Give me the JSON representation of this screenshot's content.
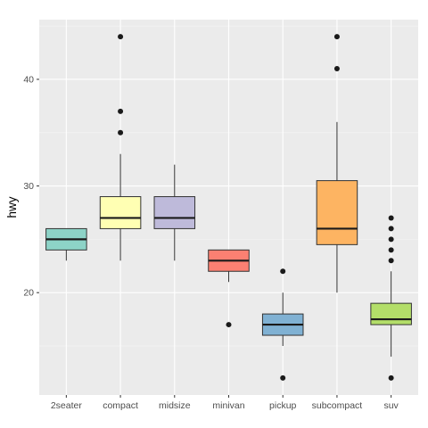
{
  "chart_data": {
    "type": "boxplot",
    "xlabel": "",
    "ylabel": "hwy",
    "ylim": [
      10.4,
      45.6
    ],
    "y_ticks": [
      20,
      30,
      40
    ],
    "y_tick_labels": [
      "20",
      "30",
      "40"
    ],
    "grid": true,
    "legend": "none",
    "colors": {
      "panel_background": "#EBEBEB",
      "grid_major": "#FFFFFF",
      "grid_minor": "#F5F5F5",
      "box_outline": "#333333",
      "median_line": "#1A1A1A",
      "outlier": "#1A1A1A"
    },
    "categories": [
      "2seater",
      "compact",
      "midsize",
      "minivan",
      "pickup",
      "subcompact",
      "suv"
    ],
    "boxes": [
      {
        "category": "2seater",
        "fill": "#8DD3C7",
        "whisker_low": 23,
        "q1": 24,
        "median": 25,
        "q3": 26,
        "whisker_high": 26,
        "outliers": []
      },
      {
        "category": "compact",
        "fill": "#FFFFB3",
        "whisker_low": 23,
        "q1": 26,
        "median": 27,
        "q3": 29,
        "whisker_high": 33,
        "outliers": [
          35,
          37,
          44
        ]
      },
      {
        "category": "midsize",
        "fill": "#BEBADA",
        "whisker_low": 23,
        "q1": 26,
        "median": 27,
        "q3": 29,
        "whisker_high": 32,
        "outliers": []
      },
      {
        "category": "minivan",
        "fill": "#FB8072",
        "whisker_low": 21,
        "q1": 22,
        "median": 23,
        "q3": 24,
        "whisker_high": 24,
        "outliers": [
          17
        ]
      },
      {
        "category": "pickup",
        "fill": "#80B1D3",
        "whisker_low": 15,
        "q1": 16,
        "median": 17,
        "q3": 18,
        "whisker_high": 20,
        "outliers": [
          12,
          22
        ]
      },
      {
        "category": "subcompact",
        "fill": "#FDB462",
        "whisker_low": 20,
        "q1": 24.5,
        "median": 26,
        "q3": 30.5,
        "whisker_high": 36,
        "outliers": [
          41,
          44
        ]
      },
      {
        "category": "suv",
        "fill": "#B3DE69",
        "whisker_low": 14,
        "q1": 17,
        "median": 17.5,
        "q3": 19,
        "whisker_high": 22,
        "outliers": [
          12,
          23,
          24,
          25,
          26,
          27
        ]
      }
    ]
  }
}
